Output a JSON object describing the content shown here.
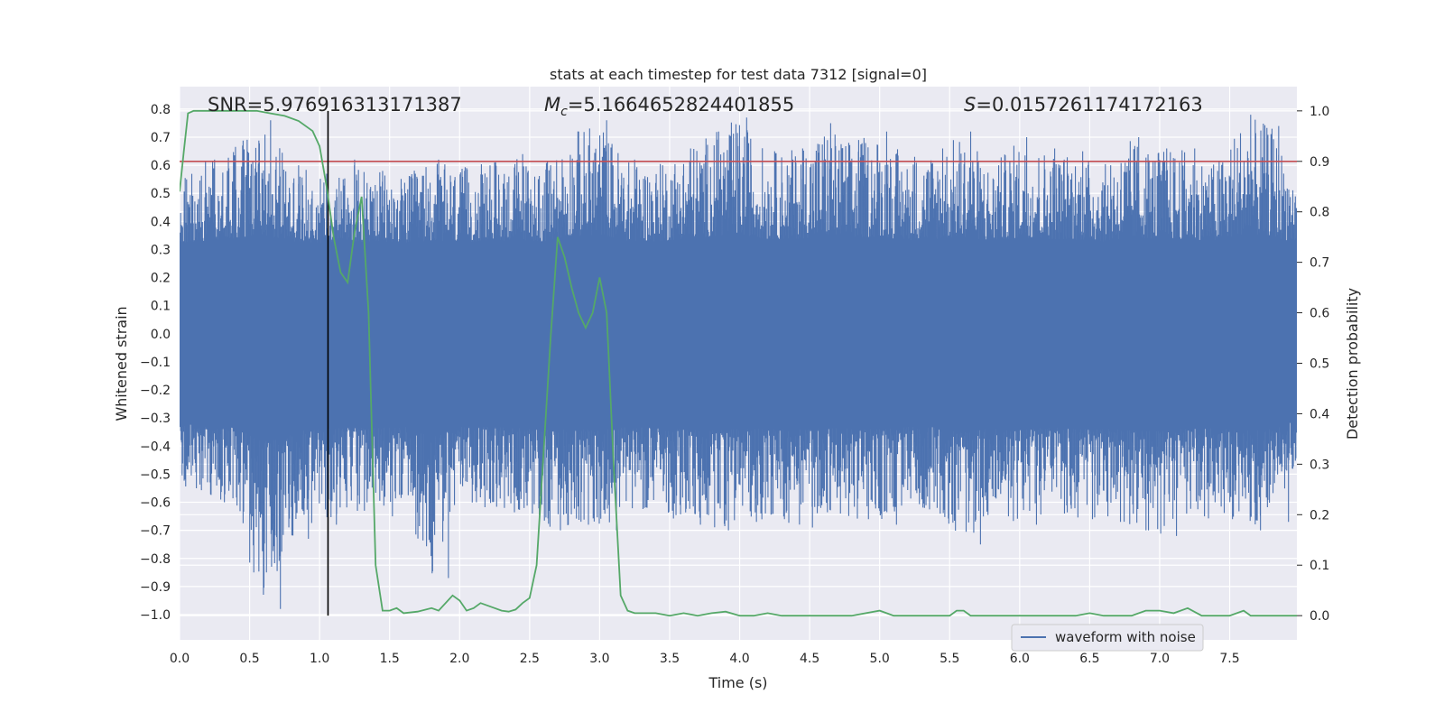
{
  "chart_data": {
    "type": "line",
    "title": "stats at each timestep for test data 7312 [signal=0]",
    "xlabel": "Time (s)",
    "ylabel": "Whitened strain",
    "ylabel_right": "Detection probability",
    "xlim": [
      0.0,
      7.98
    ],
    "ylim": [
      -1.09,
      0.88
    ],
    "ylim_right": [
      -0.048,
      1.048
    ],
    "x_ticks": [
      "0.0",
      "0.5",
      "1.0",
      "1.5",
      "2.0",
      "2.5",
      "3.0",
      "3.5",
      "4.0",
      "4.5",
      "5.0",
      "5.5",
      "6.0",
      "6.5",
      "7.0",
      "7.5"
    ],
    "y_ticks": [
      "0.8",
      "0.7",
      "0.6",
      "0.5",
      "0.4",
      "0.3",
      "0.2",
      "0.1",
      "0.0",
      "−0.1",
      "−0.2",
      "−0.3",
      "−0.4",
      "−0.5",
      "−0.6",
      "−0.7",
      "−0.8",
      "−0.9",
      "−1.0"
    ],
    "y_ticks_right": [
      "1.0",
      "0.9",
      "0.8",
      "0.7",
      "0.6",
      "0.5",
      "0.4",
      "0.3",
      "0.2",
      "0.1",
      "0.0"
    ],
    "annotations": {
      "snr": "SNR=5.976916313171387",
      "mc_symbol": "M",
      "mc_sub": "c",
      "mc_value": "=5.1664652824401855",
      "s_symbol": "S",
      "s_value": "=0.0157261174172163"
    },
    "threshold_right": 0.9,
    "marker_time": 1.06,
    "grid": true,
    "legend": {
      "position": "lower-right",
      "entries": [
        "waveform with noise"
      ]
    },
    "series": [
      {
        "name": "waveform with noise",
        "color": "#4c72b0",
        "axis": "left",
        "envelope": {
          "t": [
            0.0,
            0.2,
            0.4,
            0.6,
            0.8,
            1.0,
            1.2,
            1.4,
            1.6,
            1.8,
            2.0,
            2.2,
            2.4,
            2.6,
            2.8,
            3.0,
            3.2,
            3.4,
            3.6,
            3.8,
            4.0,
            4.2,
            4.4,
            4.6,
            4.8,
            5.0,
            5.2,
            5.4,
            5.6,
            5.8,
            6.0,
            6.2,
            6.4,
            6.6,
            6.8,
            7.0,
            7.2,
            7.4,
            7.6,
            7.8,
            7.98
          ],
          "max": [
            0.55,
            0.62,
            0.67,
            0.76,
            0.6,
            0.57,
            0.62,
            0.58,
            0.56,
            0.62,
            0.59,
            0.61,
            0.64,
            0.6,
            0.72,
            0.76,
            0.62,
            0.6,
            0.66,
            0.72,
            0.77,
            0.65,
            0.66,
            0.75,
            0.69,
            0.72,
            0.63,
            0.66,
            0.72,
            0.6,
            0.7,
            0.66,
            0.65,
            0.6,
            0.7,
            0.66,
            0.66,
            0.61,
            0.78,
            0.74,
            0.55
          ],
          "min": [
            -0.55,
            -0.6,
            -0.65,
            -0.98,
            -0.73,
            -0.68,
            -0.63,
            -0.65,
            -0.6,
            -0.87,
            -0.6,
            -0.62,
            -0.64,
            -0.7,
            -0.68,
            -0.7,
            -0.62,
            -0.63,
            -0.68,
            -0.7,
            -0.67,
            -0.66,
            -0.69,
            -0.64,
            -0.66,
            -0.68,
            -0.62,
            -0.63,
            -0.75,
            -0.65,
            -0.68,
            -0.64,
            -0.66,
            -0.67,
            -0.7,
            -0.72,
            -0.65,
            -0.66,
            -0.7,
            -0.67,
            -0.45
          ],
          "core": 0.28
        }
      },
      {
        "name": "",
        "color": "#55a868",
        "axis": "right",
        "t": [
          0.0,
          0.03,
          0.06,
          0.1,
          0.15,
          0.25,
          0.35,
          0.45,
          0.55,
          0.65,
          0.75,
          0.85,
          0.95,
          1.0,
          1.05,
          1.1,
          1.15,
          1.2,
          1.25,
          1.3,
          1.35,
          1.4,
          1.45,
          1.5,
          1.55,
          1.6,
          1.7,
          1.8,
          1.85,
          1.95,
          2.0,
          2.05,
          2.1,
          2.15,
          2.25,
          2.3,
          2.35,
          2.4,
          2.45,
          2.5,
          2.55,
          2.65,
          2.7,
          2.75,
          2.8,
          2.85,
          2.9,
          2.95,
          3.0,
          3.05,
          3.1,
          3.15,
          3.2,
          3.25,
          3.3,
          3.4,
          3.5,
          3.6,
          3.7,
          3.8,
          3.9,
          4.0,
          4.1,
          4.2,
          4.3,
          4.4,
          4.5,
          4.6,
          4.8,
          5.0,
          5.1,
          5.2,
          5.3,
          5.4,
          5.5,
          5.55,
          5.6,
          5.65,
          5.7,
          5.8,
          6.0,
          6.2,
          6.4,
          6.5,
          6.6,
          6.8,
          6.9,
          7.0,
          7.1,
          7.2,
          7.3,
          7.4,
          7.5,
          7.6,
          7.65,
          7.7,
          7.8,
          7.98
        ],
        "values": [
          0.84,
          0.92,
          0.995,
          1.0,
          1.0,
          1.0,
          1.0,
          1.0,
          1.0,
          0.995,
          0.99,
          0.98,
          0.96,
          0.93,
          0.85,
          0.75,
          0.68,
          0.66,
          0.76,
          0.83,
          0.6,
          0.1,
          0.01,
          0.01,
          0.015,
          0.005,
          0.008,
          0.015,
          0.01,
          0.04,
          0.03,
          0.01,
          0.015,
          0.025,
          0.015,
          0.01,
          0.008,
          0.012,
          0.025,
          0.035,
          0.1,
          0.55,
          0.75,
          0.71,
          0.65,
          0.6,
          0.57,
          0.6,
          0.67,
          0.6,
          0.3,
          0.04,
          0.01,
          0.005,
          0.005,
          0.005,
          0.0,
          0.005,
          0.0,
          0.005,
          0.008,
          0.0,
          0.0,
          0.005,
          0.0,
          0.0,
          0.0,
          0.0,
          0.0,
          0.01,
          0.0,
          0.0,
          0.0,
          0.0,
          0.0,
          0.01,
          0.01,
          0.0,
          0.0,
          0.0,
          0.0,
          0.0,
          0.0,
          0.005,
          0.0,
          0.0,
          0.01,
          0.01,
          0.005,
          0.015,
          0.0,
          0.0,
          0.0,
          0.01,
          0.0,
          0.0,
          0.0,
          0.0
        ]
      },
      {
        "name": "",
        "color": "#c44e52",
        "axis": "right",
        "values": [
          0.9,
          0.9
        ]
      }
    ]
  }
}
